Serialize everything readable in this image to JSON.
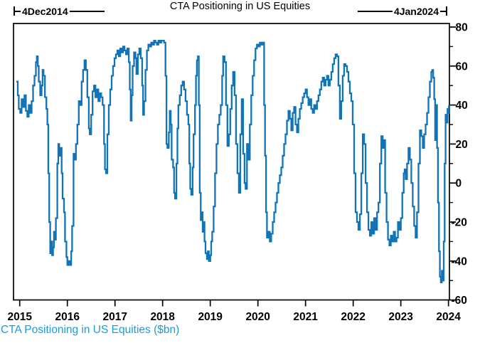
{
  "title": "CTA Positioning in US Equities",
  "annotations": {
    "start_label": "4Dec2014",
    "end_label": "4Jan2024"
  },
  "legend": "CTA Positioning in US Equities ($bn)",
  "colors": {
    "line": "#1074b6",
    "legend_text": "#1e9cd8",
    "axis": "#000000",
    "tick_text": "#000000"
  },
  "chart_data": {
    "type": "line",
    "title": "CTA Positioning in US Equities",
    "series_label": "CTA Positioning in US Equities ($bn)",
    "x_start_date": "4Dec2014",
    "x_end_date": "4Jan2024",
    "xlim": [
      2014.87,
      2024.02
    ],
    "ylim": [
      -60,
      82
    ],
    "x_ticks": [
      2015,
      2016,
      2017,
      2018,
      2019,
      2020,
      2021,
      2022,
      2023,
      2024
    ],
    "y_ticks": [
      80,
      60,
      40,
      20,
      0,
      -20,
      -40,
      -60
    ],
    "y_minor_step": 10,
    "grid": false,
    "legend_position": "bottom-left",
    "points": [
      [
        2014.93,
        52
      ],
      [
        2014.96,
        45
      ],
      [
        2014.98,
        38
      ],
      [
        2015.01,
        36
      ],
      [
        2015.04,
        43
      ],
      [
        2015.07,
        39
      ],
      [
        2015.1,
        45
      ],
      [
        2015.13,
        37
      ],
      [
        2015.16,
        34
      ],
      [
        2015.19,
        40
      ],
      [
        2015.22,
        36
      ],
      [
        2015.25,
        42
      ],
      [
        2015.28,
        50
      ],
      [
        2015.31,
        55
      ],
      [
        2015.34,
        62
      ],
      [
        2015.36,
        65
      ],
      [
        2015.38,
        60
      ],
      [
        2015.4,
        52
      ],
      [
        2015.43,
        45
      ],
      [
        2015.46,
        50
      ],
      [
        2015.48,
        58
      ],
      [
        2015.5,
        55
      ],
      [
        2015.53,
        44
      ],
      [
        2015.56,
        38
      ],
      [
        2015.58,
        30
      ],
      [
        2015.6,
        5
      ],
      [
        2015.62,
        -20
      ],
      [
        2015.64,
        -36
      ],
      [
        2015.66,
        -30
      ],
      [
        2015.68,
        -37
      ],
      [
        2015.7,
        -33
      ],
      [
        2015.72,
        -25
      ],
      [
        2015.74,
        -29
      ],
      [
        2015.76,
        -18
      ],
      [
        2015.79,
        10
      ],
      [
        2015.81,
        20
      ],
      [
        2015.83,
        14
      ],
      [
        2015.86,
        18
      ],
      [
        2015.88,
        5
      ],
      [
        2015.9,
        -8
      ],
      [
        2015.93,
        -15
      ],
      [
        2015.95,
        -30
      ],
      [
        2015.98,
        -38
      ],
      [
        2016.0,
        -42
      ],
      [
        2016.03,
        -40
      ],
      [
        2016.05,
        -42
      ],
      [
        2016.08,
        -35
      ],
      [
        2016.1,
        -22
      ],
      [
        2016.13,
        15
      ],
      [
        2016.16,
        12
      ],
      [
        2016.18,
        20
      ],
      [
        2016.21,
        30
      ],
      [
        2016.24,
        42
      ],
      [
        2016.27,
        40
      ],
      [
        2016.3,
        52
      ],
      [
        2016.33,
        58
      ],
      [
        2016.36,
        63
      ],
      [
        2016.39,
        58
      ],
      [
        2016.42,
        44
      ],
      [
        2016.45,
        28
      ],
      [
        2016.47,
        25
      ],
      [
        2016.5,
        35
      ],
      [
        2016.53,
        47
      ],
      [
        2016.56,
        50
      ],
      [
        2016.59,
        44
      ],
      [
        2016.62,
        48
      ],
      [
        2016.65,
        42
      ],
      [
        2016.68,
        46
      ],
      [
        2016.71,
        44
      ],
      [
        2016.74,
        40
      ],
      [
        2016.77,
        20
      ],
      [
        2016.79,
        7
      ],
      [
        2016.81,
        5
      ],
      [
        2016.84,
        25
      ],
      [
        2016.87,
        40
      ],
      [
        2016.9,
        48
      ],
      [
        2016.93,
        55
      ],
      [
        2016.96,
        60
      ],
      [
        2016.99,
        64
      ],
      [
        2017.02,
        66
      ],
      [
        2017.05,
        68
      ],
      [
        2017.08,
        65
      ],
      [
        2017.11,
        69
      ],
      [
        2017.14,
        67
      ],
      [
        2017.17,
        70
      ],
      [
        2017.2,
        68
      ],
      [
        2017.23,
        66
      ],
      [
        2017.26,
        69
      ],
      [
        2017.29,
        62
      ],
      [
        2017.31,
        48
      ],
      [
        2017.33,
        32
      ],
      [
        2017.35,
        45
      ],
      [
        2017.37,
        60
      ],
      [
        2017.4,
        67
      ],
      [
        2017.43,
        64
      ],
      [
        2017.45,
        56
      ],
      [
        2017.48,
        66
      ],
      [
        2017.51,
        69
      ],
      [
        2017.54,
        64
      ],
      [
        2017.57,
        50
      ],
      [
        2017.59,
        35
      ],
      [
        2017.61,
        42
      ],
      [
        2017.64,
        58
      ],
      [
        2017.67,
        68
      ],
      [
        2017.7,
        71
      ],
      [
        2017.73,
        70
      ],
      [
        2017.76,
        72
      ],
      [
        2017.79,
        71
      ],
      [
        2017.82,
        73
      ],
      [
        2017.85,
        72
      ],
      [
        2017.88,
        71
      ],
      [
        2017.91,
        73
      ],
      [
        2017.94,
        72
      ],
      [
        2017.97,
        73
      ],
      [
        2018.0,
        73
      ],
      [
        2018.03,
        72
      ],
      [
        2018.06,
        55
      ],
      [
        2018.08,
        20
      ],
      [
        2018.1,
        18
      ],
      [
        2018.13,
        26
      ],
      [
        2018.15,
        37
      ],
      [
        2018.17,
        30
      ],
      [
        2018.19,
        12
      ],
      [
        2018.22,
        8
      ],
      [
        2018.24,
        -5
      ],
      [
        2018.26,
        -8
      ],
      [
        2018.29,
        10
      ],
      [
        2018.31,
        28
      ],
      [
        2018.33,
        40
      ],
      [
        2018.36,
        45
      ],
      [
        2018.39,
        50
      ],
      [
        2018.42,
        52
      ],
      [
        2018.45,
        48
      ],
      [
        2018.48,
        42
      ],
      [
        2018.51,
        35
      ],
      [
        2018.54,
        30
      ],
      [
        2018.56,
        10
      ],
      [
        2018.58,
        -3
      ],
      [
        2018.6,
        -6
      ],
      [
        2018.63,
        8
      ],
      [
        2018.65,
        25
      ],
      [
        2018.68,
        40
      ],
      [
        2018.7,
        55
      ],
      [
        2018.72,
        63
      ],
      [
        2018.74,
        65
      ],
      [
        2018.76,
        40
      ],
      [
        2018.78,
        -5
      ],
      [
        2018.8,
        -19
      ],
      [
        2018.82,
        -15
      ],
      [
        2018.84,
        -25
      ],
      [
        2018.86,
        -20
      ],
      [
        2018.88,
        -30
      ],
      [
        2018.9,
        -36
      ],
      [
        2018.93,
        -39
      ],
      [
        2018.95,
        -35
      ],
      [
        2018.97,
        -40
      ],
      [
        2019.0,
        -37
      ],
      [
        2019.02,
        -30
      ],
      [
        2019.04,
        -25
      ],
      [
        2019.07,
        -12
      ],
      [
        2019.1,
        5
      ],
      [
        2019.13,
        20
      ],
      [
        2019.16,
        30
      ],
      [
        2019.19,
        35
      ],
      [
        2019.22,
        40
      ],
      [
        2019.25,
        55
      ],
      [
        2019.27,
        65
      ],
      [
        2019.3,
        62
      ],
      [
        2019.33,
        40
      ],
      [
        2019.36,
        19
      ],
      [
        2019.39,
        25
      ],
      [
        2019.42,
        38
      ],
      [
        2019.45,
        50
      ],
      [
        2019.48,
        57
      ],
      [
        2019.51,
        45
      ],
      [
        2019.54,
        20
      ],
      [
        2019.57,
        5
      ],
      [
        2019.6,
        -5
      ],
      [
        2019.63,
        25
      ],
      [
        2019.66,
        43
      ],
      [
        2019.69,
        15
      ],
      [
        2019.72,
        0
      ],
      [
        2019.74,
        -3
      ],
      [
        2019.77,
        20
      ],
      [
        2019.8,
        12
      ],
      [
        2019.83,
        30
      ],
      [
        2019.86,
        45
      ],
      [
        2019.89,
        55
      ],
      [
        2019.92,
        63
      ],
      [
        2019.95,
        69
      ],
      [
        2019.98,
        71
      ],
      [
        2020.01,
        70
      ],
      [
        2020.04,
        72
      ],
      [
        2020.07,
        71
      ],
      [
        2020.1,
        72
      ],
      [
        2020.13,
        40
      ],
      [
        2020.15,
        14
      ],
      [
        2020.17,
        -15
      ],
      [
        2020.19,
        -28
      ],
      [
        2020.22,
        -25
      ],
      [
        2020.25,
        -30
      ],
      [
        2020.28,
        -26
      ],
      [
        2020.31,
        -20
      ],
      [
        2020.34,
        -15
      ],
      [
        2020.37,
        -10
      ],
      [
        2020.4,
        -5
      ],
      [
        2020.43,
        0
      ],
      [
        2020.46,
        4
      ],
      [
        2020.49,
        8
      ],
      [
        2020.52,
        14
      ],
      [
        2020.55,
        20
      ],
      [
        2020.58,
        25
      ],
      [
        2020.61,
        32
      ],
      [
        2020.64,
        37
      ],
      [
        2020.67,
        33
      ],
      [
        2020.7,
        27
      ],
      [
        2020.73,
        36
      ],
      [
        2020.76,
        39
      ],
      [
        2020.79,
        30
      ],
      [
        2020.82,
        26
      ],
      [
        2020.85,
        33
      ],
      [
        2020.88,
        38
      ],
      [
        2020.91,
        41
      ],
      [
        2020.94,
        44
      ],
      [
        2020.97,
        46
      ],
      [
        2021.0,
        48
      ],
      [
        2021.03,
        44
      ],
      [
        2021.06,
        40
      ],
      [
        2021.09,
        43
      ],
      [
        2021.12,
        38
      ],
      [
        2021.15,
        36
      ],
      [
        2021.18,
        40
      ],
      [
        2021.21,
        38
      ],
      [
        2021.24,
        42
      ],
      [
        2021.27,
        45
      ],
      [
        2021.3,
        48
      ],
      [
        2021.33,
        52
      ],
      [
        2021.36,
        54
      ],
      [
        2021.39,
        50
      ],
      [
        2021.42,
        53
      ],
      [
        2021.45,
        55
      ],
      [
        2021.48,
        50
      ],
      [
        2021.51,
        53
      ],
      [
        2021.54,
        57
      ],
      [
        2021.57,
        61
      ],
      [
        2021.6,
        64
      ],
      [
        2021.63,
        66
      ],
      [
        2021.66,
        65
      ],
      [
        2021.69,
        50
      ],
      [
        2021.72,
        33
      ],
      [
        2021.75,
        42
      ],
      [
        2021.78,
        55
      ],
      [
        2021.81,
        61
      ],
      [
        2021.84,
        60
      ],
      [
        2021.87,
        57
      ],
      [
        2021.9,
        52
      ],
      [
        2021.93,
        46
      ],
      [
        2021.96,
        42
      ],
      [
        2021.99,
        30
      ],
      [
        2022.02,
        5
      ],
      [
        2022.05,
        -15
      ],
      [
        2022.08,
        -20
      ],
      [
        2022.11,
        -24
      ],
      [
        2022.14,
        -16
      ],
      [
        2022.17,
        5
      ],
      [
        2022.2,
        25
      ],
      [
        2022.23,
        20
      ],
      [
        2022.26,
        0
      ],
      [
        2022.29,
        -15
      ],
      [
        2022.32,
        -24
      ],
      [
        2022.35,
        -27
      ],
      [
        2022.38,
        -20
      ],
      [
        2022.41,
        -26
      ],
      [
        2022.44,
        -18
      ],
      [
        2022.47,
        -24
      ],
      [
        2022.5,
        -15
      ],
      [
        2022.53,
        -10
      ],
      [
        2022.56,
        10
      ],
      [
        2022.59,
        24
      ],
      [
        2022.62,
        18
      ],
      [
        2022.64,
        22
      ],
      [
        2022.67,
        -5
      ],
      [
        2022.7,
        -20
      ],
      [
        2022.73,
        -29
      ],
      [
        2022.76,
        -32
      ],
      [
        2022.79,
        -27
      ],
      [
        2022.82,
        -30
      ],
      [
        2022.85,
        -25
      ],
      [
        2022.88,
        -30
      ],
      [
        2022.91,
        -28
      ],
      [
        2022.94,
        -20
      ],
      [
        2022.97,
        -24
      ],
      [
        2023.0,
        -18
      ],
      [
        2023.03,
        -5
      ],
      [
        2023.06,
        5
      ],
      [
        2023.08,
        7
      ],
      [
        2023.1,
        2
      ],
      [
        2023.13,
        10
      ],
      [
        2023.16,
        18
      ],
      [
        2023.19,
        12
      ],
      [
        2023.22,
        0
      ],
      [
        2023.25,
        -12
      ],
      [
        2023.28,
        -22
      ],
      [
        2023.31,
        -28
      ],
      [
        2023.34,
        -15
      ],
      [
        2023.37,
        10
      ],
      [
        2023.4,
        27
      ],
      [
        2023.43,
        24
      ],
      [
        2023.46,
        18
      ],
      [
        2023.49,
        25
      ],
      [
        2023.52,
        30
      ],
      [
        2023.55,
        36
      ],
      [
        2023.58,
        44
      ],
      [
        2023.61,
        52
      ],
      [
        2023.64,
        57
      ],
      [
        2023.66,
        58
      ],
      [
        2023.68,
        54
      ],
      [
        2023.7,
        43
      ],
      [
        2023.72,
        22
      ],
      [
        2023.74,
        40
      ],
      [
        2023.76,
        18
      ],
      [
        2023.78,
        -10
      ],
      [
        2023.8,
        -35
      ],
      [
        2023.82,
        -48
      ],
      [
        2023.84,
        -51
      ],
      [
        2023.86,
        -45
      ],
      [
        2023.88,
        -50
      ],
      [
        2023.9,
        -30
      ],
      [
        2023.92,
        10
      ],
      [
        2023.94,
        35
      ],
      [
        2023.96,
        31
      ],
      [
        2023.98,
        38
      ],
      [
        2024.0,
        36
      ],
      [
        2024.01,
        40
      ]
    ]
  }
}
